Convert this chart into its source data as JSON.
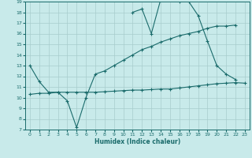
{
  "xlabel": "Humidex (Indice chaleur)",
  "bg_color": "#c8eaea",
  "line_color": "#1a6b6b",
  "grid_color": "#a8cccc",
  "xlim": [
    -0.5,
    23.5
  ],
  "ylim": [
    7,
    19
  ],
  "xticks": [
    0,
    1,
    2,
    3,
    4,
    5,
    6,
    7,
    8,
    9,
    10,
    11,
    12,
    13,
    14,
    15,
    16,
    17,
    18,
    19,
    20,
    21,
    22,
    23
  ],
  "yticks": [
    7,
    8,
    9,
    10,
    11,
    12,
    13,
    14,
    15,
    16,
    17,
    18,
    19
  ],
  "line1_x": [
    0,
    1,
    2,
    3,
    4,
    5,
    6,
    7,
    8,
    9,
    10,
    11,
    12,
    13,
    14,
    15,
    16,
    17,
    18,
    19,
    20,
    21,
    22
  ],
  "line1_y": [
    13,
    11.5,
    10.5,
    10.5,
    9.7,
    7.2,
    10.0,
    12.2,
    12.5,
    13.0,
    13.5,
    14.0,
    14.5,
    14.8,
    15.2,
    15.5,
    15.8,
    16.0,
    16.2,
    16.5,
    16.7,
    16.7,
    16.8
  ],
  "line2_x": [
    0,
    1,
    2,
    3,
    4,
    5,
    6,
    7,
    8,
    9,
    10,
    11,
    12,
    13,
    14,
    15,
    16,
    17,
    18,
    19,
    20,
    21,
    22,
    23
  ],
  "line2_y": [
    10.3,
    10.4,
    10.4,
    10.5,
    10.5,
    10.5,
    10.5,
    10.5,
    10.55,
    10.6,
    10.65,
    10.7,
    10.7,
    10.75,
    10.8,
    10.8,
    10.9,
    11.0,
    11.1,
    11.2,
    11.3,
    11.35,
    11.4,
    11.35
  ],
  "line3_x": [
    11,
    12,
    13,
    14,
    15,
    16,
    17,
    18,
    19,
    20,
    21,
    22
  ],
  "line3_y": [
    18.0,
    18.3,
    16.0,
    19.2,
    19.3,
    19.0,
    19.0,
    17.7,
    15.3,
    13.0,
    12.2,
    11.7
  ]
}
